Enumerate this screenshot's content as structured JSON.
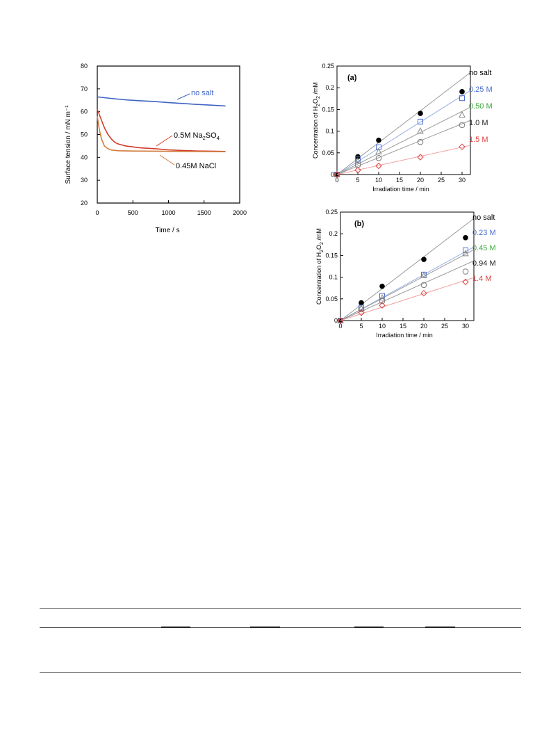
{
  "chart_data": [
    {
      "type": "line",
      "ylabel": "Surface tension / mN m⁻¹",
      "xlabel": "Time / s",
      "xlim": [
        0,
        2000
      ],
      "ylim": [
        20,
        80
      ],
      "xticks": [
        0,
        500,
        1000,
        1500,
        2000
      ],
      "yticks": [
        20,
        30,
        40,
        50,
        60,
        70,
        80
      ],
      "grid": false,
      "series": [
        {
          "name": "no salt",
          "color": "#3f63c4",
          "x": [
            0,
            200,
            400,
            600,
            800,
            1000,
            1200,
            1400,
            1600,
            1800
          ],
          "y": [
            66.5,
            65.8,
            65.2,
            64.8,
            64.5,
            64.0,
            63.6,
            63.2,
            62.9,
            62.5
          ]
        },
        {
          "name": "0.5M Na2SO4",
          "color": "#d43a2a",
          "x": [
            0,
            50,
            100,
            150,
            200,
            250,
            300,
            400,
            600,
            800,
            1000,
            1200,
            1400,
            1600,
            1800
          ],
          "y": [
            61,
            57,
            53,
            50,
            48,
            46.5,
            45.8,
            45.0,
            44.2,
            43.8,
            43.3,
            43.0,
            42.8,
            42.7,
            42.6
          ]
        },
        {
          "name": "0.45M NaCl",
          "color": "#d07a3a",
          "x": [
            0,
            30,
            60,
            100,
            150,
            200,
            300,
            500,
            800,
            1200,
            1800
          ],
          "y": [
            58,
            52,
            48,
            45,
            43.8,
            43.2,
            42.9,
            42.8,
            42.7,
            42.6,
            42.5
          ]
        }
      ],
      "annotations": {
        "no_salt": "no salt",
        "na2so4_main": "0.5M Na",
        "na2so4_sub1": "2",
        "na2so4_mid": "SO",
        "na2so4_sub2": "4",
        "nacl": "0.45M NaCl"
      }
    },
    {
      "type": "scatter",
      "panel": "(a)",
      "xlabel": "Irradiation time / min",
      "ylabel_main": "Concentration of H",
      "ylabel_sub1": "2",
      "ylabel_mid": "O",
      "ylabel_sub2": "2",
      "ylabel_tail": " /mM",
      "xlim": [
        0,
        32
      ],
      "ylim": [
        0,
        0.25
      ],
      "xticks": [
        0,
        5,
        10,
        15,
        20,
        25,
        30
      ],
      "yticks": [
        0,
        0.05,
        0.1,
        0.15,
        0.2,
        0.25
      ],
      "grid": false,
      "x": [
        0,
        5,
        10,
        20,
        30
      ],
      "series": [
        {
          "name": "no salt",
          "marker": "filled-circle",
          "color": "#000000",
          "values": [
            0,
            0.041,
            0.079,
            0.141,
            0.191
          ],
          "fit_slope": 0.00735
        },
        {
          "name": "0.25 M",
          "marker": "square",
          "color": "#4a6fd0",
          "values": [
            0,
            0.036,
            0.063,
            0.122,
            0.176
          ],
          "fit_slope": 0.00605
        },
        {
          "name": "0.50 M",
          "marker": "triangle",
          "color": "#3aa83a",
          "values": [
            0,
            0.031,
            0.052,
            0.1,
            0.137
          ],
          "fit_slope": 0.00485
        },
        {
          "name": "1.0 M",
          "marker": "circle",
          "color": "#222222",
          "values": [
            0,
            0.022,
            0.038,
            0.075,
            0.114
          ],
          "fit_slope": 0.0039
        },
        {
          "name": "1.5 M",
          "marker": "diamond",
          "color": "#e04040",
          "values": [
            0,
            0.01,
            0.02,
            0.04,
            0.064
          ],
          "fit_slope": 0.0021
        }
      ]
    },
    {
      "type": "scatter",
      "panel": "(b)",
      "xlabel": "Irradiation time / min",
      "ylabel_main": "Concentration of H",
      "ylabel_sub1": "2",
      "ylabel_mid": "O",
      "ylabel_sub2": "2",
      "ylabel_tail": " /mM",
      "xlim": [
        0,
        32
      ],
      "ylim": [
        0,
        0.25
      ],
      "xticks": [
        0,
        5,
        10,
        15,
        20,
        25,
        30
      ],
      "yticks": [
        0,
        0.05,
        0.1,
        0.15,
        0.2,
        0.25
      ],
      "grid": false,
      "x": [
        0,
        5,
        10,
        20,
        30
      ],
      "series": [
        {
          "name": "no salt",
          "marker": "filled-circle",
          "color": "#000000",
          "values": [
            0,
            0.041,
            0.079,
            0.141,
            0.191
          ],
          "fit_slope": 0.00735
        },
        {
          "name": "0.23 M",
          "marker": "square",
          "color": "#4a6fd0",
          "values": [
            0,
            0.03,
            0.057,
            0.106,
            0.162
          ],
          "fit_slope": 0.0053
        },
        {
          "name": "0.45 M",
          "marker": "triangle",
          "color": "#3aa83a",
          "values": [
            0,
            0.028,
            0.052,
            0.104,
            0.154
          ],
          "fit_slope": 0.0051
        },
        {
          "name": "0.94 M",
          "marker": "circle",
          "color": "#222222",
          "values": [
            0,
            0.026,
            0.045,
            0.082,
            0.113
          ],
          "fit_slope": 0.0043
        },
        {
          "name": "1.4 M",
          "marker": "diamond",
          "color": "#e04040",
          "values": [
            0,
            0.018,
            0.035,
            0.063,
            0.089
          ],
          "fit_slope": 0.0031
        }
      ]
    }
  ]
}
